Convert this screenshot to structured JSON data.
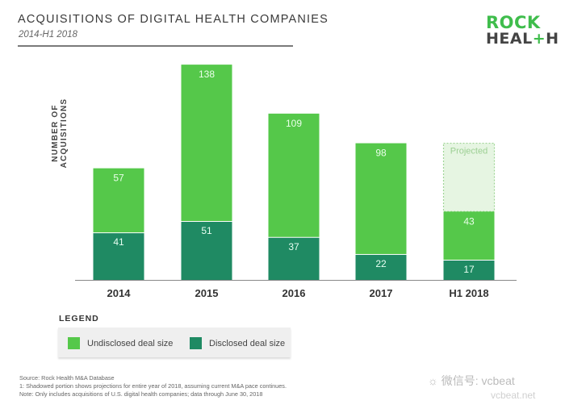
{
  "header": {
    "title": "ACQUISITIONS OF DIGITAL HEALTH COMPANIES",
    "subtitle": "2014-H1 2018"
  },
  "logo": {
    "line1": "ROCK",
    "line2_a": "HEAL",
    "line2_plus": "+",
    "line2_b": "H"
  },
  "colors": {
    "undisclosed": "#55c84a",
    "disclosed": "#1f8a63",
    "projected_fill": "#e6f5e2",
    "projected_border": "#9fd596",
    "axis": "#888888"
  },
  "chart_data": {
    "type": "bar",
    "stacked": true,
    "title": "ACQUISITIONS OF DIGITAL HEALTH COMPANIES",
    "subtitle": "2014-H1 2018",
    "xlabel": "",
    "ylabel": "NUMBER OF ACQUISITIONS",
    "ylim": [
      0,
      190
    ],
    "grid": false,
    "categories": [
      "2014",
      "2015",
      "2016",
      "2017",
      "H1 2018"
    ],
    "series": [
      {
        "name": "Disclosed deal size",
        "values": [
          41,
          51,
          37,
          22,
          17
        ]
      },
      {
        "name": "Undisclosed deal size",
        "values": [
          57,
          138,
          109,
          98,
          43
        ]
      }
    ],
    "projected": {
      "category": "H1 2018",
      "label": "Projected",
      "total": 120
    },
    "legend": {
      "title": "LEGEND",
      "placement": "bottom-left",
      "entries": [
        "Undisclosed deal size",
        "Disclosed deal size"
      ]
    }
  },
  "footnotes": [
    "Source: Rock Health M&A Database",
    "1: Shadowed portion shows projections for entire year of 2018, assuming current M&A pace continues.",
    "Note: Only includes acquisitions of U.S. digital health companies; data through June 30, 2018"
  ],
  "watermark": {
    "text": "微信号: vcbeat",
    "brand": "动脉网",
    "url": "vcbeat.net"
  }
}
